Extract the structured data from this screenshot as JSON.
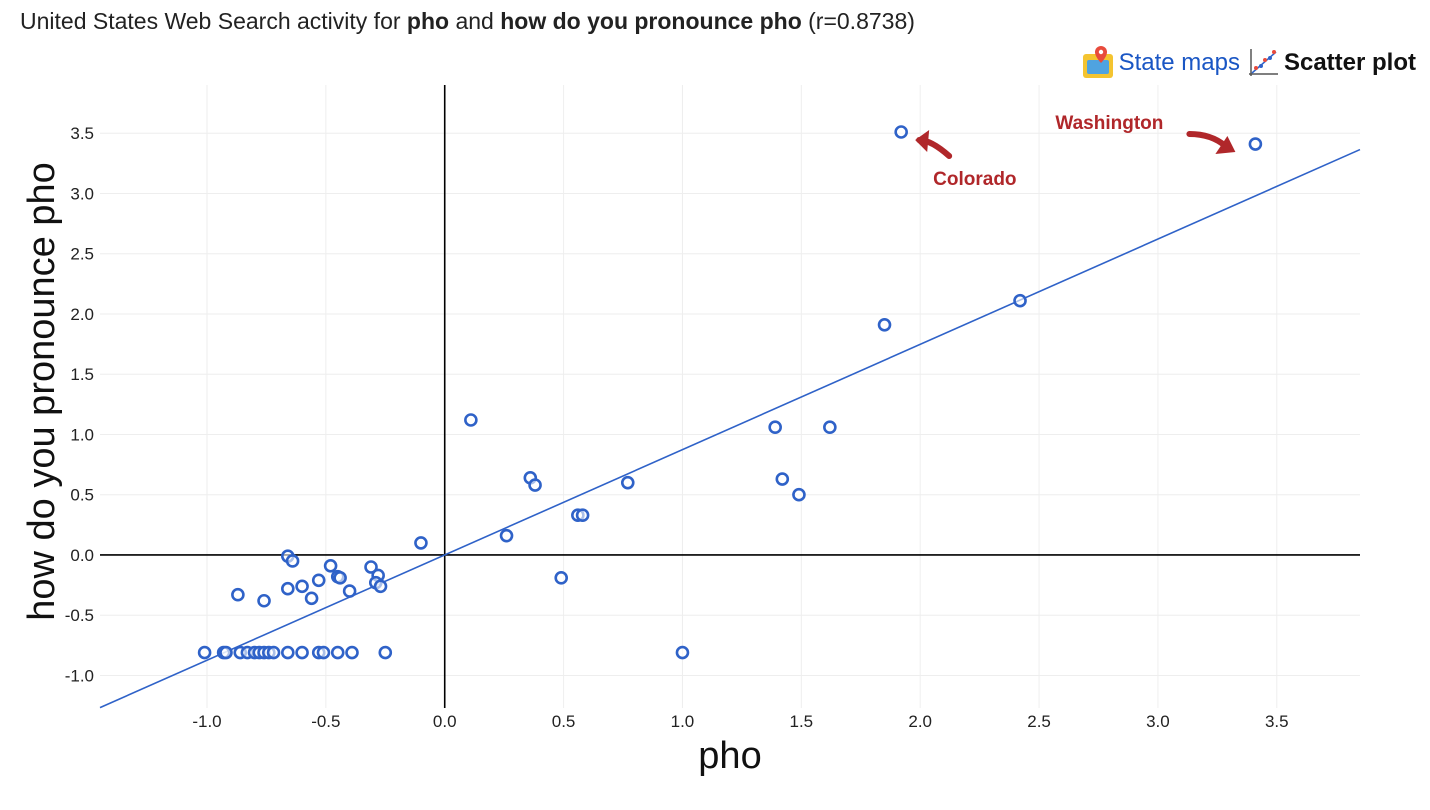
{
  "header": {
    "title_prefix": "United States Web Search activity for ",
    "term1": "pho",
    "title_and": " and ",
    "term2": "how do you pronounce pho",
    "title_suffix": " (r=0.8738)"
  },
  "links": {
    "state_maps": "State maps",
    "scatter_plot": "Scatter plot",
    "state_maps_icon": "map-marker-icon",
    "scatter_icon": "scatter-plot-icon"
  },
  "colors": {
    "point": "#2f62c8",
    "line": "#2f62c8",
    "annotation": "#b0272a",
    "grid": "#eeeeee"
  },
  "chart_data": {
    "type": "scatter",
    "xlabel": "pho",
    "ylabel": "how do you pronounce pho",
    "xlim": [
      -1.45,
      3.85
    ],
    "ylim": [
      -1.27,
      3.9
    ],
    "xticks": [
      -1.0,
      -0.5,
      0.0,
      0.5,
      1.0,
      1.5,
      2.0,
      2.5,
      3.0,
      3.5
    ],
    "yticks": [
      -1.0,
      -0.5,
      0.0,
      0.5,
      1.0,
      1.5,
      2.0,
      2.5,
      3.0,
      3.5
    ],
    "tick_labels_x": [
      "-1.0",
      "-0.5",
      "0.0",
      "0.5",
      "1.0",
      "1.5",
      "2.0",
      "2.5",
      "3.0",
      "3.5"
    ],
    "tick_labels_y": [
      "-1.0",
      "-0.5",
      "0.0",
      "0.5",
      "1.0",
      "1.5",
      "2.0",
      "2.5",
      "3.0",
      "3.5"
    ],
    "grid": true,
    "trendline": {
      "slope": 0.8738,
      "intercept": 0
    },
    "points": [
      {
        "x": 1.92,
        "y": 3.51
      },
      {
        "x": 3.41,
        "y": 3.41
      },
      {
        "x": 2.42,
        "y": 2.11
      },
      {
        "x": 1.85,
        "y": 1.91
      },
      {
        "x": 0.11,
        "y": 1.12
      },
      {
        "x": 1.39,
        "y": 1.06
      },
      {
        "x": 1.62,
        "y": 1.06
      },
      {
        "x": 0.36,
        "y": 0.64
      },
      {
        "x": 0.38,
        "y": 0.58
      },
      {
        "x": 0.77,
        "y": 0.6
      },
      {
        "x": 1.42,
        "y": 0.63
      },
      {
        "x": 1.49,
        "y": 0.5
      },
      {
        "x": 0.56,
        "y": 0.33
      },
      {
        "x": 0.58,
        "y": 0.33
      },
      {
        "x": 0.26,
        "y": 0.16
      },
      {
        "x": -0.1,
        "y": 0.1
      },
      {
        "x": -0.66,
        "y": -0.01
      },
      {
        "x": -0.64,
        "y": -0.05
      },
      {
        "x": -0.48,
        "y": -0.09
      },
      {
        "x": -0.31,
        "y": -0.1
      },
      {
        "x": -0.45,
        "y": -0.18
      },
      {
        "x": -0.44,
        "y": -0.19
      },
      {
        "x": -0.28,
        "y": -0.17
      },
      {
        "x": -0.53,
        "y": -0.21
      },
      {
        "x": -0.29,
        "y": -0.23
      },
      {
        "x": -0.27,
        "y": -0.26
      },
      {
        "x": 0.49,
        "y": -0.19
      },
      {
        "x": -0.6,
        "y": -0.26
      },
      {
        "x": -0.66,
        "y": -0.28
      },
      {
        "x": -0.4,
        "y": -0.3
      },
      {
        "x": -0.87,
        "y": -0.33
      },
      {
        "x": -0.56,
        "y": -0.36
      },
      {
        "x": -0.76,
        "y": -0.38
      },
      {
        "x": -1.01,
        "y": -0.81
      },
      {
        "x": -0.93,
        "y": -0.81
      },
      {
        "x": -0.92,
        "y": -0.81
      },
      {
        "x": -0.86,
        "y": -0.81
      },
      {
        "x": -0.83,
        "y": -0.81
      },
      {
        "x": -0.8,
        "y": -0.81
      },
      {
        "x": -0.78,
        "y": -0.81
      },
      {
        "x": -0.76,
        "y": -0.81
      },
      {
        "x": -0.74,
        "y": -0.81
      },
      {
        "x": -0.72,
        "y": -0.81
      },
      {
        "x": -0.66,
        "y": -0.81
      },
      {
        "x": -0.6,
        "y": -0.81
      },
      {
        "x": -0.53,
        "y": -0.81
      },
      {
        "x": -0.51,
        "y": -0.81
      },
      {
        "x": -0.45,
        "y": -0.81
      },
      {
        "x": -0.39,
        "y": -0.81
      },
      {
        "x": -0.25,
        "y": -0.81
      },
      {
        "x": 1.0,
        "y": -0.81
      }
    ],
    "annotations": [
      {
        "text": "Colorado",
        "x": 1.92,
        "y": 3.51
      },
      {
        "text": "Washington",
        "x": 3.41,
        "y": 3.41
      }
    ]
  }
}
